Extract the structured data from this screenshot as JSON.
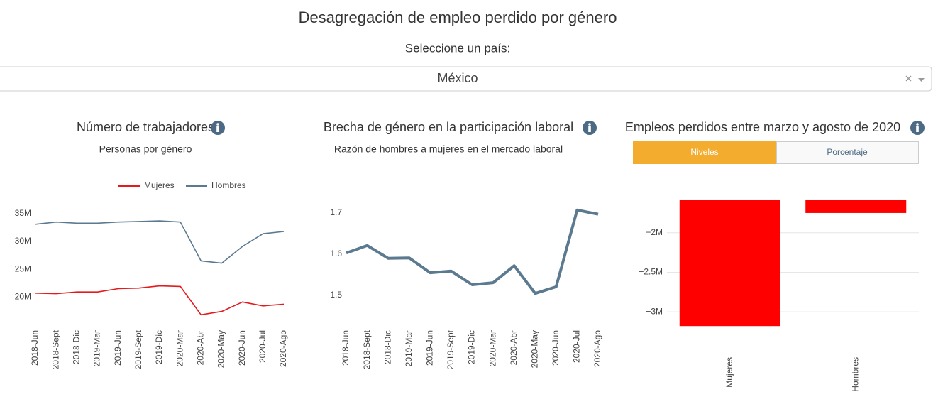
{
  "header": {
    "title": "Desagregación de empleo perdido por género",
    "prompt": "Seleccione un país:"
  },
  "dropdown": {
    "value": "México"
  },
  "tabs": [
    "Niveles",
    "Porcentaje"
  ],
  "chart_data": [
    {
      "type": "line",
      "title": "Número de trabajadores",
      "subtitle": "Personas por género",
      "categories": [
        "2018-Jun",
        "2018-Sept",
        "2018-Dic",
        "2019-Mar",
        "2019-Jun",
        "2019-Sept",
        "2019-Dic",
        "2020-Mar",
        "2020-Abr",
        "2020-May",
        "2020-Jun",
        "2020-Jul",
        "2020-Ago"
      ],
      "series": [
        {
          "name": "Mujeres",
          "color": "#e41a1c",
          "values": [
            20700000,
            20600000,
            20900000,
            20900000,
            21500000,
            21600000,
            22000000,
            21900000,
            16800000,
            17400000,
            19100000,
            18400000,
            18700000
          ]
        },
        {
          "name": "Hombres",
          "color": "#5b7a90",
          "values": [
            33100000,
            33500000,
            33300000,
            33300000,
            33500000,
            33600000,
            33700000,
            33500000,
            26500000,
            26100000,
            29100000,
            31400000,
            31800000
          ]
        }
      ],
      "ylim": [
        15300000,
        37300000
      ],
      "yticks": [
        {
          "value": 20000000,
          "label": "20M"
        },
        {
          "value": 25000000,
          "label": "25M"
        },
        {
          "value": 30000000,
          "label": "30M"
        },
        {
          "value": 35000000,
          "label": "35M"
        }
      ],
      "grid": false,
      "legend": "top"
    },
    {
      "type": "line",
      "title": "Brecha de género en la participación laboral",
      "subtitle": "Razón de hombres a mujeres en el mercado laboral",
      "categories": [
        "2018-Jun",
        "2018-Sept",
        "2018-Dic",
        "2019-Mar",
        "2019-Jun",
        "2019-Sept",
        "2019-Dic",
        "2020-Mar",
        "2020-Abr",
        "2020-May",
        "2020-Jun",
        "2020-Jul",
        "2020-Ago"
      ],
      "values": [
        1.603,
        1.621,
        1.59,
        1.591,
        1.555,
        1.559,
        1.526,
        1.531,
        1.572,
        1.505,
        1.521,
        1.707,
        1.697
      ],
      "color": "#5b7a90",
      "ylim": [
        1.433,
        1.729
      ],
      "yticks": [
        1.5,
        1.6,
        1.7
      ],
      "grid": false
    },
    {
      "type": "bar",
      "title": "Empleos perdidos entre marzo y agosto de 2020",
      "categories": [
        "Mujeres",
        "Hombres"
      ],
      "values": [
        -3180000,
        -1750000
      ],
      "color": "#ff0000",
      "ylim": [
        -3250000,
        -1580000
      ],
      "yticks": [
        {
          "value": -3000000,
          "label": "−3M"
        },
        {
          "value": -2500000,
          "label": "−2.5M"
        },
        {
          "value": -2000000,
          "label": "−2M"
        }
      ],
      "grid": true
    }
  ]
}
